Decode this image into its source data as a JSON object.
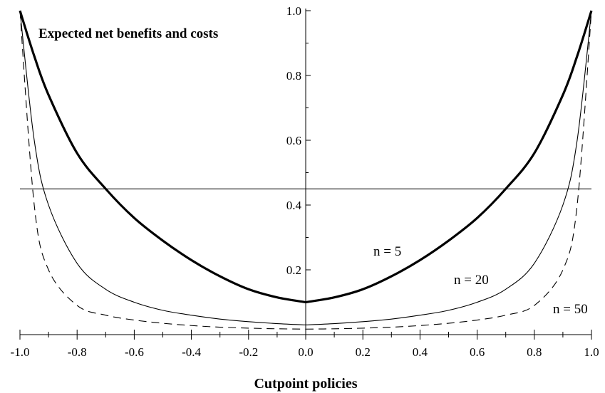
{
  "chart_data": {
    "type": "line",
    "title": "Expected net benefits and costs",
    "xlabel": "Cutpoint policies",
    "ylabel": "",
    "xlim": [
      -1.0,
      1.0
    ],
    "ylim": [
      0.0,
      1.0
    ],
    "grid": false,
    "x_ticks": [
      "-1.0",
      "-0.8",
      "-0.6",
      "-0.4",
      "-0.2",
      "0.0",
      "0.2",
      "0.4",
      "0.6",
      "0.8",
      "1.0"
    ],
    "y_ticks": [
      "0.2",
      "0.4",
      "0.6",
      "0.8",
      "1.0"
    ],
    "x": [
      -1.0,
      -0.95,
      -0.9,
      -0.8,
      -0.7,
      -0.6,
      -0.5,
      -0.4,
      -0.3,
      -0.2,
      -0.1,
      0.0,
      0.1,
      0.2,
      0.3,
      0.4,
      0.5,
      0.6,
      0.7,
      0.8,
      0.9,
      0.95,
      1.0
    ],
    "series": [
      {
        "name": "n = 5",
        "style": "thick",
        "values": [
          1.0,
          0.86,
          0.74,
          0.56,
          0.45,
          0.36,
          0.29,
          0.23,
          0.18,
          0.14,
          0.115,
          0.1,
          0.115,
          0.14,
          0.18,
          0.23,
          0.29,
          0.36,
          0.45,
          0.56,
          0.74,
          0.86,
          1.0
        ]
      },
      {
        "name": "n = 20",
        "style": "thin",
        "values": [
          1.0,
          0.6,
          0.4,
          0.22,
          0.14,
          0.1,
          0.075,
          0.06,
          0.048,
          0.04,
          0.034,
          0.03,
          0.034,
          0.04,
          0.048,
          0.06,
          0.075,
          0.1,
          0.14,
          0.22,
          0.4,
          0.6,
          1.0
        ]
      },
      {
        "name": "n = 50",
        "style": "dashed",
        "values": [
          1.0,
          0.4,
          0.2,
          0.09,
          0.06,
          0.045,
          0.035,
          0.028,
          0.023,
          0.02,
          0.018,
          0.017,
          0.018,
          0.02,
          0.023,
          0.028,
          0.035,
          0.045,
          0.06,
          0.09,
          0.2,
          0.4,
          1.0
        ]
      }
    ],
    "reference_line": {
      "y": 0.45
    }
  }
}
